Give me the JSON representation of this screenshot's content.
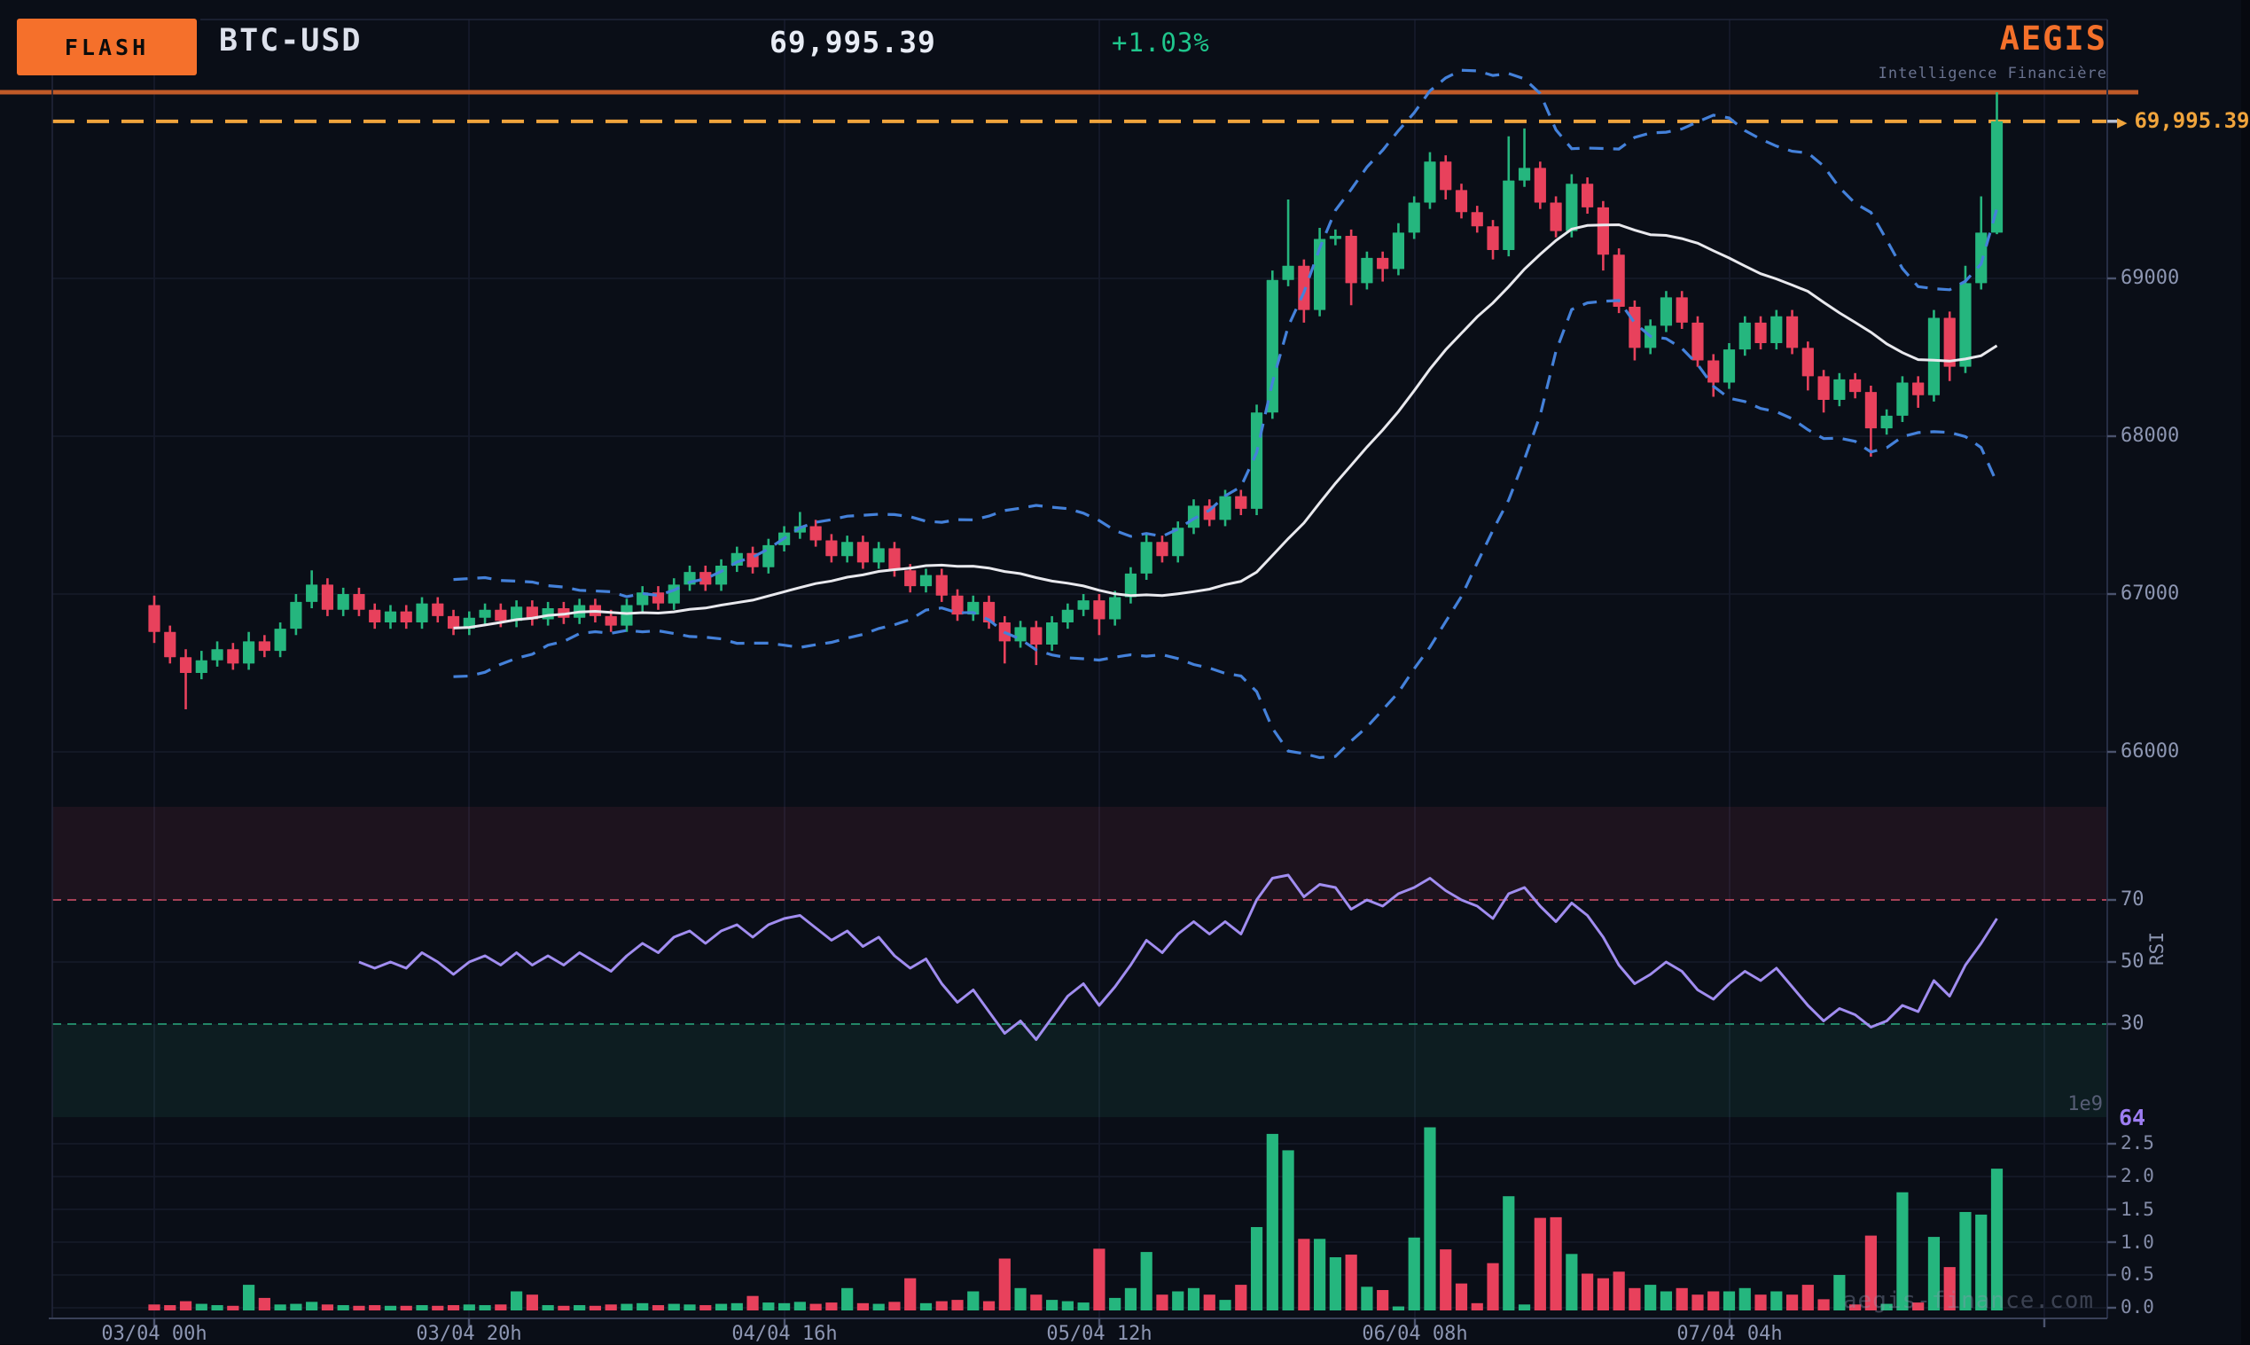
{
  "header": {
    "flash": "FLASH",
    "symbol": "BTC-USD",
    "price": "69,995.39",
    "change": "+1.03%",
    "brand": "AEGIS",
    "tagline": "Intelligence Financière"
  },
  "price_marker": {
    "arrow": "▶",
    "label": "69,995.39"
  },
  "axes": {
    "price": [
      "69000",
      "68000",
      "67000",
      "66000"
    ],
    "rsi": [
      "70",
      "50",
      "30"
    ],
    "rsi_title": "RSI",
    "rsi_last": "64",
    "volume": [
      "2.5",
      "2.0",
      "1.5",
      "1.0",
      "0.5",
      "0.0"
    ],
    "volume_scale": "1e9",
    "time": [
      "03/04 00h",
      "03/04 20h",
      "04/04 16h",
      "05/04 12h",
      "06/04 08h",
      "07/04 04h"
    ]
  },
  "watermark": "aegis-finance.com",
  "colors": {
    "up": "#25b67e",
    "down": "#e8415c",
    "band": "#4481da",
    "sma": "#e9e9ee",
    "rsi_line": "#a18df0",
    "accent_orange": "#f5702b",
    "marker_orange": "#f0a43c",
    "high_line": "#c05a28",
    "overbought_fill": "#e0506e",
    "oversold_fill": "#2ebd8f"
  },
  "chart_data": {
    "type": "candlestick",
    "symbol": "BTC-USD",
    "last_price": 69995.39,
    "change_pct": "+1.03%",
    "interval": "1h",
    "x_tick_labels": [
      "03/04 00h",
      "03/04 20h",
      "04/04 16h",
      "05/04 12h",
      "06/04 08h",
      "07/04 04h"
    ],
    "price_ticks": [
      69000,
      68000,
      67000,
      66000
    ],
    "rsi_ticks": [
      70,
      50,
      30
    ],
    "rsi_last": 64,
    "rsi_overbought": 70,
    "rsi_oversold": 30,
    "volume_ticks": [
      2.5,
      2.0,
      1.5,
      1.0,
      0.5,
      0.0
    ],
    "volume_scale": "1e9",
    "overlays": [
      "bollinger(20,2)",
      "sma(20)"
    ],
    "high_line_price": 70180,
    "marker_price": 69995.39,
    "candles": [
      [
        66930,
        66990,
        66690,
        66760
      ],
      [
        66760,
        66800,
        66560,
        66600
      ],
      [
        66600,
        66650,
        66270,
        66500
      ],
      [
        66500,
        66640,
        66460,
        66580
      ],
      [
        66580,
        66700,
        66540,
        66650
      ],
      [
        66650,
        66690,
        66520,
        66560
      ],
      [
        66560,
        66760,
        66520,
        66700
      ],
      [
        66700,
        66740,
        66600,
        66640
      ],
      [
        66640,
        66820,
        66600,
        66780
      ],
      [
        66780,
        67000,
        66740,
        66950
      ],
      [
        66950,
        67150,
        66910,
        67060
      ],
      [
        67060,
        67100,
        66860,
        66900
      ],
      [
        66900,
        67040,
        66860,
        67000
      ],
      [
        67000,
        67040,
        66860,
        66900
      ],
      [
        66900,
        66940,
        66780,
        66820
      ],
      [
        66820,
        66930,
        66780,
        66890
      ],
      [
        66890,
        66930,
        66780,
        66820
      ],
      [
        66820,
        66980,
        66780,
        66940
      ],
      [
        66940,
        66980,
        66820,
        66860
      ],
      [
        66860,
        66900,
        66740,
        66780
      ],
      [
        66780,
        66890,
        66740,
        66850
      ],
      [
        66850,
        66940,
        66810,
        66900
      ],
      [
        66900,
        66940,
        66790,
        66830
      ],
      [
        66830,
        66960,
        66790,
        66920
      ],
      [
        66920,
        66960,
        66800,
        66840
      ],
      [
        66840,
        66950,
        66800,
        66910
      ],
      [
        66910,
        66950,
        66810,
        66850
      ],
      [
        66850,
        66970,
        66810,
        66930
      ],
      [
        66930,
        66970,
        66820,
        66860
      ],
      [
        66860,
        66900,
        66760,
        66800
      ],
      [
        66800,
        66970,
        66760,
        66930
      ],
      [
        66930,
        67050,
        66890,
        67010
      ],
      [
        67010,
        67050,
        66900,
        66940
      ],
      [
        66940,
        67100,
        66900,
        67060
      ],
      [
        67060,
        67180,
        67020,
        67140
      ],
      [
        67140,
        67180,
        67020,
        67060
      ],
      [
        67060,
        67220,
        67020,
        67180
      ],
      [
        67180,
        67300,
        67140,
        67260
      ],
      [
        67260,
        67300,
        67130,
        67170
      ],
      [
        67170,
        67350,
        67130,
        67310
      ],
      [
        67310,
        67430,
        67270,
        67390
      ],
      [
        67390,
        67520,
        67350,
        67430
      ],
      [
        67430,
        67470,
        67300,
        67340
      ],
      [
        67340,
        67380,
        67200,
        67240
      ],
      [
        67240,
        67370,
        67200,
        67330
      ],
      [
        67330,
        67370,
        67160,
        67200
      ],
      [
        67200,
        67330,
        67160,
        67290
      ],
      [
        67290,
        67330,
        67110,
        67150
      ],
      [
        67150,
        67190,
        67010,
        67050
      ],
      [
        67050,
        67160,
        67010,
        67120
      ],
      [
        67120,
        67160,
        66950,
        66990
      ],
      [
        66990,
        67030,
        66830,
        66870
      ],
      [
        66870,
        66990,
        66830,
        66950
      ],
      [
        66950,
        66990,
        66780,
        66820
      ],
      [
        66820,
        66860,
        66560,
        66700
      ],
      [
        66700,
        66830,
        66660,
        66790
      ],
      [
        66790,
        66830,
        66550,
        66680
      ],
      [
        66680,
        66860,
        66640,
        66820
      ],
      [
        66820,
        66940,
        66780,
        66900
      ],
      [
        66900,
        67000,
        66860,
        66960
      ],
      [
        66960,
        67000,
        66740,
        66840
      ],
      [
        66840,
        67020,
        66800,
        66980
      ],
      [
        66980,
        67170,
        66940,
        67130
      ],
      [
        67130,
        67380,
        67090,
        67330
      ],
      [
        67330,
        67370,
        67200,
        67240
      ],
      [
        67240,
        67460,
        67200,
        67420
      ],
      [
        67420,
        67600,
        67380,
        67560
      ],
      [
        67560,
        67600,
        67430,
        67470
      ],
      [
        67470,
        67660,
        67430,
        67620
      ],
      [
        67620,
        67660,
        67500,
        67540
      ],
      [
        67540,
        68200,
        67500,
        68150
      ],
      [
        68150,
        69050,
        68110,
        68990
      ],
      [
        68990,
        69500,
        68950,
        69080
      ],
      [
        69080,
        69120,
        68720,
        68800
      ],
      [
        68800,
        69320,
        68760,
        69250
      ],
      [
        69250,
        69310,
        69210,
        69270
      ],
      [
        69270,
        69310,
        68830,
        68970
      ],
      [
        68970,
        69170,
        68930,
        69130
      ],
      [
        69130,
        69170,
        68980,
        69060
      ],
      [
        69060,
        69350,
        69020,
        69290
      ],
      [
        69290,
        69520,
        69250,
        69480
      ],
      [
        69480,
        69800,
        69440,
        69740
      ],
      [
        69740,
        69780,
        69500,
        69560
      ],
      [
        69560,
        69600,
        69380,
        69420
      ],
      [
        69420,
        69460,
        69290,
        69330
      ],
      [
        69330,
        69370,
        69120,
        69180
      ],
      [
        69180,
        69900,
        69140,
        69620
      ],
      [
        69620,
        69950,
        69580,
        69700
      ],
      [
        69700,
        69740,
        69440,
        69480
      ],
      [
        69480,
        69520,
        69260,
        69300
      ],
      [
        69300,
        69660,
        69260,
        69600
      ],
      [
        69600,
        69640,
        69410,
        69450
      ],
      [
        69450,
        69490,
        69050,
        69150
      ],
      [
        69150,
        69190,
        68780,
        68820
      ],
      [
        68820,
        68860,
        68480,
        68560
      ],
      [
        68560,
        68740,
        68520,
        68700
      ],
      [
        68700,
        68920,
        68660,
        68880
      ],
      [
        68880,
        68920,
        68680,
        68720
      ],
      [
        68720,
        68760,
        68440,
        68480
      ],
      [
        68480,
        68520,
        68250,
        68340
      ],
      [
        68340,
        68590,
        68300,
        68550
      ],
      [
        68550,
        68760,
        68510,
        68720
      ],
      [
        68720,
        68760,
        68550,
        68590
      ],
      [
        68590,
        68800,
        68550,
        68760
      ],
      [
        68760,
        68800,
        68520,
        68560
      ],
      [
        68560,
        68600,
        68290,
        68380
      ],
      [
        68380,
        68420,
        68150,
        68230
      ],
      [
        68230,
        68400,
        68190,
        68360
      ],
      [
        68360,
        68400,
        68240,
        68280
      ],
      [
        68280,
        68320,
        67870,
        68050
      ],
      [
        68050,
        68170,
        68010,
        68130
      ],
      [
        68130,
        68380,
        68090,
        68340
      ],
      [
        68340,
        68380,
        68180,
        68260
      ],
      [
        68260,
        68800,
        68220,
        68750
      ],
      [
        68750,
        68790,
        68350,
        68440
      ],
      [
        68440,
        69080,
        68400,
        68970
      ],
      [
        68970,
        69520,
        68930,
        69290
      ],
      [
        69290,
        70180,
        69280,
        69995
      ]
    ],
    "volumes": [
      0.05,
      0.04,
      0.1,
      0.06,
      0.04,
      0.03,
      0.35,
      0.15,
      0.05,
      0.06,
      0.09,
      0.05,
      0.04,
      0.03,
      0.04,
      0.03,
      0.03,
      0.04,
      0.03,
      0.04,
      0.05,
      0.04,
      0.05,
      0.25,
      0.2,
      0.04,
      0.03,
      0.04,
      0.03,
      0.05,
      0.06,
      0.07,
      0.04,
      0.06,
      0.05,
      0.04,
      0.06,
      0.07,
      0.18,
      0.08,
      0.07,
      0.09,
      0.06,
      0.08,
      0.3,
      0.07,
      0.06,
      0.09,
      0.45,
      0.07,
      0.1,
      0.12,
      0.25,
      0.1,
      0.75,
      0.3,
      0.2,
      0.12,
      0.1,
      0.08,
      0.9,
      0.15,
      0.3,
      0.85,
      0.2,
      0.25,
      0.3,
      0.2,
      0.12,
      0.35,
      1.23,
      2.65,
      2.4,
      1.05,
      1.05,
      0.77,
      0.81,
      0.32,
      0.27,
      0.02,
      1.07,
      2.75,
      0.89,
      0.37,
      0.07,
      0.68,
      1.7,
      0.05,
      1.37,
      1.38,
      0.82,
      0.52,
      0.45,
      0.55,
      0.3,
      0.35,
      0.25,
      0.3,
      0.2,
      0.25,
      0.25,
      0.3,
      0.2,
      0.25,
      0.2,
      0.35,
      0.13,
      0.5,
      0.05,
      1.1,
      0.06,
      1.76,
      0.08,
      1.08,
      0.62,
      1.46,
      1.42,
      2.12
    ],
    "rsi": [
      null,
      null,
      null,
      null,
      null,
      null,
      null,
      null,
      null,
      null,
      null,
      null,
      null,
      50,
      48,
      50,
      48,
      53,
      50,
      46,
      50,
      52,
      49,
      53,
      49,
      52,
      49,
      53,
      50,
      47,
      52,
      56,
      53,
      58,
      60,
      56,
      60,
      62,
      58,
      62,
      64,
      65,
      61,
      57,
      60,
      55,
      58,
      52,
      48,
      51,
      43,
      37,
      41,
      34,
      27,
      31,
      25,
      32,
      39,
      43,
      36,
      42,
      49,
      57,
      53,
      59,
      63,
      59,
      63,
      59,
      70,
      77,
      78,
      71,
      75,
      74,
      67,
      70,
      68,
      72,
      74,
      77,
      73,
      70,
      68,
      64,
      72,
      74,
      68,
      63,
      69,
      65,
      58,
      49,
      43,
      46,
      50,
      47,
      41,
      38,
      43,
      47,
      44,
      48,
      42,
      36,
      31,
      35,
      33,
      29,
      31,
      36,
      34,
      44,
      39,
      49,
      56,
      64
    ]
  }
}
